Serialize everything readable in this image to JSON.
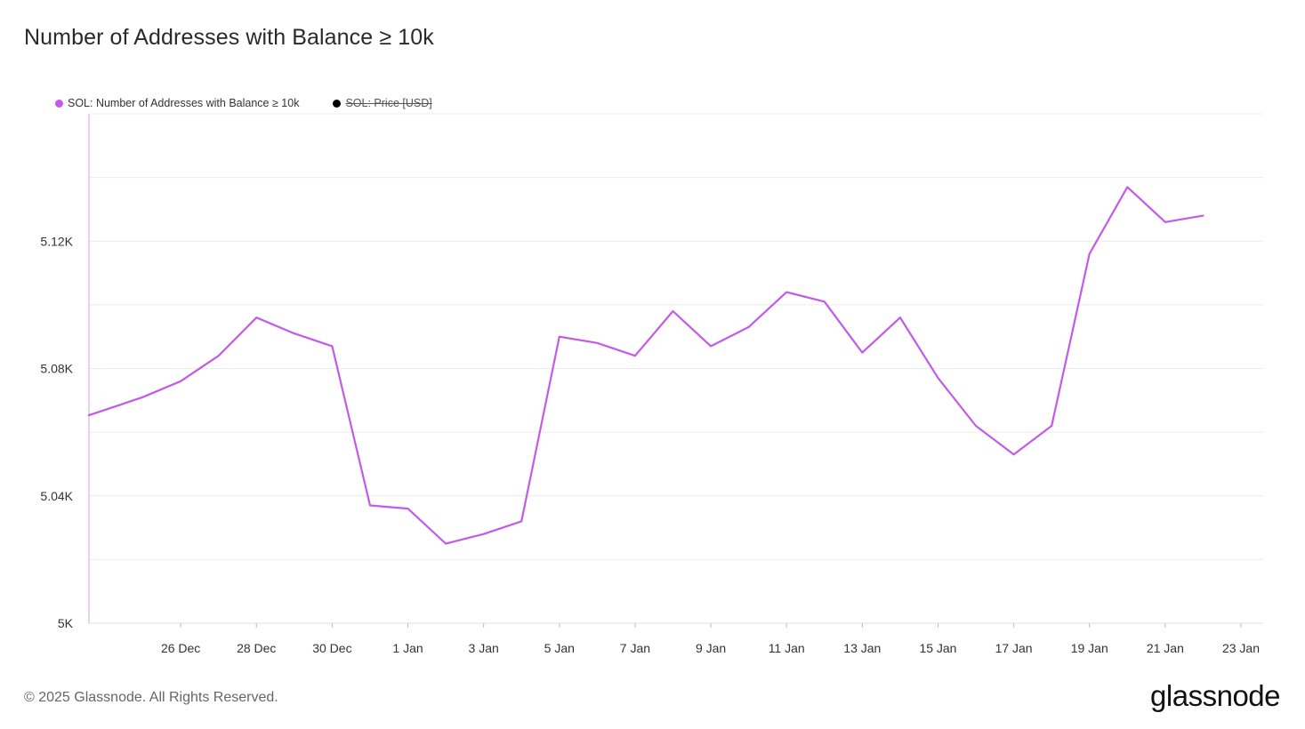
{
  "title": "Number of Addresses with Balance ≥ 10k",
  "legend": [
    {
      "label": "SOL: Number of Addresses with Balance ≥ 10k",
      "color": "#c45ae8",
      "hidden": false
    },
    {
      "label": "SOL: Price [USD]",
      "color": "#000000",
      "hidden": true
    }
  ],
  "footer": "© 2025 Glassnode. All Rights Reserved.",
  "logo": "glassnode",
  "chart_data": {
    "type": "line",
    "title": "Number of Addresses with Balance ≥ 10k",
    "xlabel": "",
    "ylabel": "",
    "x_range": [
      "2024-12-24",
      "2025-01-23"
    ],
    "ylim": [
      5000,
      5160
    ],
    "y_ticks": [
      5000,
      5040,
      5080,
      5120
    ],
    "y_tick_labels": [
      "5K",
      "5.04K",
      "5.08K",
      "5.12K"
    ],
    "x_ticks": [
      "2024-12-26",
      "2024-12-28",
      "2024-12-30",
      "2025-01-01",
      "2025-01-03",
      "2025-01-05",
      "2025-01-07",
      "2025-01-09",
      "2025-01-11",
      "2025-01-13",
      "2025-01-15",
      "2025-01-17",
      "2025-01-19",
      "2025-01-21",
      "2025-01-23"
    ],
    "x_tick_labels": [
      "26 Dec",
      "28 Dec",
      "30 Dec",
      "1 Jan",
      "3 Jan",
      "5 Jan",
      "7 Jan",
      "9 Jan",
      "11 Jan",
      "13 Jan",
      "15 Jan",
      "17 Jan",
      "19 Jan",
      "21 Jan",
      "23 Jan"
    ],
    "grid": true,
    "series": [
      {
        "name": "SOL: Number of Addresses with Balance ≥ 10k",
        "color": "#c45ae8",
        "x": [
          "2024-12-24",
          "2024-12-25",
          "2024-12-26",
          "2024-12-27",
          "2024-12-28",
          "2024-12-29",
          "2024-12-30",
          "2024-12-31",
          "2025-01-01",
          "2025-01-02",
          "2025-01-03",
          "2025-01-04",
          "2025-01-05",
          "2025-01-06",
          "2025-01-07",
          "2025-01-08",
          "2025-01-09",
          "2025-01-10",
          "2025-01-11",
          "2025-01-12",
          "2025-01-13",
          "2025-01-14",
          "2025-01-15",
          "2025-01-16",
          "2025-01-17",
          "2025-01-18",
          "2025-01-19",
          "2025-01-20",
          "2025-01-21",
          "2025-01-22"
        ],
        "values": [
          5067,
          5071,
          5076,
          5084,
          5096,
          5091,
          5087,
          5037,
          5036,
          5025,
          5028,
          5032,
          5090,
          5088,
          5084,
          5098,
          5087,
          5093,
          5104,
          5101,
          5085,
          5096,
          5077,
          5062,
          5053,
          5062,
          5116,
          5137,
          5126,
          5128
        ]
      }
    ]
  }
}
